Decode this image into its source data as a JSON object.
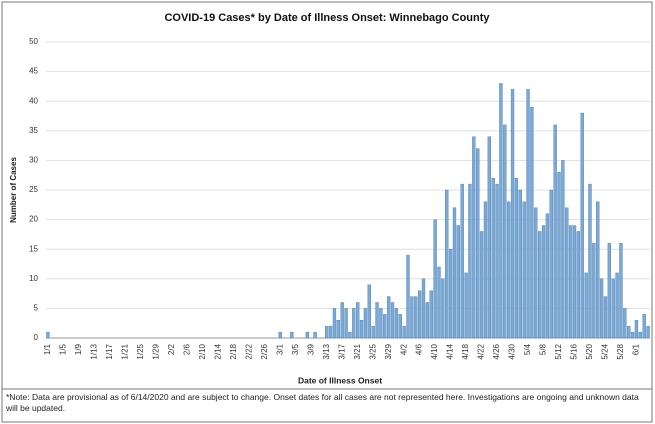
{
  "chart_data": {
    "type": "bar",
    "title": "COVID-19 Cases* by Date of Illness Onset: Winnebago County",
    "x_label": "Date of Illness Onset",
    "y_label": "Number of Cases",
    "note": "*Note: Data are provisional as of 6/14/2020 and are subject to change. Onset dates for all cases are not represented here. Investigations are ongoing and unknown data will be updated.",
    "color": "#7aa9d6",
    "grid": true,
    "ylim": [
      0,
      50
    ],
    "yticks": [
      0,
      5,
      10,
      15,
      20,
      25,
      30,
      35,
      40,
      45,
      50
    ],
    "categories": [
      "1/1",
      null,
      null,
      null,
      "1/5",
      null,
      null,
      null,
      "1/9",
      null,
      null,
      null,
      "1/13",
      null,
      null,
      null,
      "1/17",
      null,
      null,
      null,
      "1/21",
      null,
      null,
      null,
      "1/25",
      null,
      null,
      null,
      "1/29",
      null,
      null,
      null,
      "2/2",
      null,
      null,
      null,
      "2/6",
      null,
      null,
      null,
      "2/10",
      null,
      null,
      null,
      "2/14",
      null,
      null,
      null,
      "2/18",
      null,
      null,
      null,
      "2/22",
      null,
      null,
      null,
      "2/26",
      null,
      null,
      null,
      "3/1",
      null,
      null,
      null,
      "3/5",
      null,
      null,
      null,
      "3/9",
      null,
      null,
      null,
      "3/13",
      null,
      null,
      null,
      "3/17",
      null,
      null,
      null,
      "3/21",
      null,
      null,
      null,
      "3/25",
      null,
      null,
      null,
      "3/29",
      null,
      null,
      null,
      "4/2",
      null,
      null,
      null,
      "4/6",
      null,
      null,
      null,
      "4/10",
      null,
      null,
      null,
      "4/14",
      null,
      null,
      null,
      "4/18",
      null,
      null,
      null,
      "4/22",
      null,
      null,
      null,
      "4/26",
      null,
      null,
      null,
      "4/30",
      null,
      null,
      null,
      "5/4",
      null,
      null,
      null,
      "5/8",
      null,
      null,
      null,
      "5/12",
      null,
      null,
      null,
      "5/16",
      null,
      null,
      null,
      "5/20",
      null,
      null,
      null,
      "5/24",
      null,
      null,
      null,
      "5/28",
      null,
      null,
      null,
      "6/1",
      null,
      null,
      null
    ],
    "values": [
      1,
      0,
      0,
      0,
      0,
      0,
      0,
      0,
      0,
      0,
      0,
      0,
      0,
      0,
      0,
      0,
      0,
      0,
      0,
      0,
      0,
      0,
      0,
      0,
      0,
      0,
      0,
      0,
      0,
      0,
      0,
      0,
      0,
      0,
      0,
      0,
      0,
      0,
      0,
      0,
      0,
      0,
      0,
      0,
      0,
      0,
      0,
      0,
      0,
      0,
      0,
      0,
      0,
      0,
      0,
      0,
      0,
      0,
      0,
      0,
      1,
      0,
      0,
      1,
      0,
      0,
      0,
      1,
      0,
      1,
      0,
      0,
      2,
      2,
      5,
      3,
      6,
      5,
      1,
      5,
      6,
      3,
      5,
      9,
      2,
      6,
      5,
      4,
      7,
      6,
      5,
      4,
      2,
      14,
      7,
      7,
      8,
      10,
      6,
      8,
      20,
      12,
      10,
      25,
      15,
      22,
      19,
      26,
      11,
      26,
      34,
      32,
      18,
      23,
      34,
      27,
      26,
      43,
      36,
      23,
      42,
      27,
      25,
      23,
      42,
      39,
      22,
      18,
      19,
      21,
      25,
      36,
      28,
      30,
      22,
      19,
      19,
      18,
      38,
      11,
      26,
      16,
      23,
      10,
      7,
      16,
      10,
      11,
      16,
      5,
      2,
      1,
      3,
      1,
      4,
      2
    ]
  }
}
